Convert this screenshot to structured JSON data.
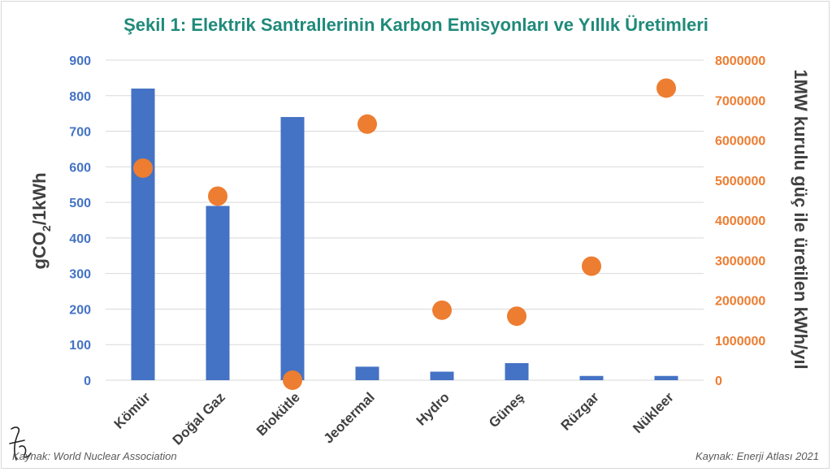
{
  "header": {
    "title": "Şekil 1: Elektrik Santrallerinin Karbon Emisyonları ve Yıllık Üretimleri"
  },
  "sources": {
    "left": "Kaynak: World Nuclear Association",
    "right": "Kaynak: Enerji Atlası 2021"
  },
  "colors": {
    "bars": "#4472c4",
    "dots": "#ed7d31",
    "title": "#1f8a7a",
    "axis_text": "#404040",
    "grid": "#d9d9d9"
  },
  "chart_data": {
    "type": "bar",
    "title": "Şekil 1: Elektrik Santrallerinin Karbon Emisyonları ve Yıllık Üretimleri",
    "categories": [
      "Kömür",
      "Doğal Gaz",
      "Biokütle",
      "Jeotermal",
      "Hydro",
      "Güneş",
      "Rüzgar",
      "Nükleer"
    ],
    "series": [
      {
        "type": "bar",
        "axis": "left",
        "values": [
          820,
          490,
          740,
          38,
          24,
          48,
          12,
          12
        ]
      },
      {
        "type": "scatter",
        "axis": "right",
        "values": [
          5300000,
          4600000,
          0,
          6400000,
          1750000,
          1600000,
          2850000,
          7300000
        ]
      }
    ],
    "ylabel_left": {
      "main": "gCO",
      "sub": "2",
      "tail": "/1kWh"
    },
    "ylabel_right": "1MW kurulu güç ile üretilen kWh/yıl",
    "y_left": {
      "min": 0,
      "max": 900,
      "step": 100,
      "ticks": [
        "0",
        "100",
        "200",
        "300",
        "400",
        "500",
        "600",
        "700",
        "800",
        "900"
      ]
    },
    "y_right": {
      "min": 0,
      "max": 8000000,
      "step": 1000000,
      "ticks": [
        "0",
        "1000000",
        "2000000",
        "3000000",
        "4000000",
        "5000000",
        "6000000",
        "7000000",
        "8000000"
      ]
    },
    "grid": true,
    "legend": "none"
  }
}
